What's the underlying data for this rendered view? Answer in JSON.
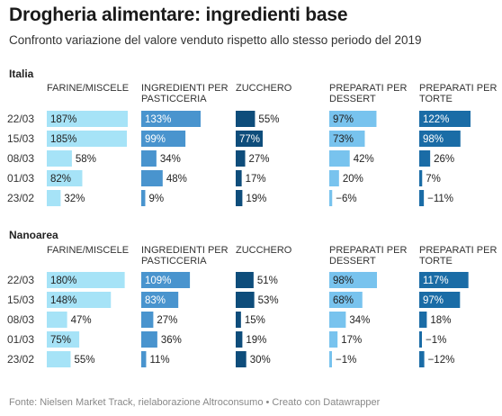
{
  "title": "Drogheria alimentare: ingredienti base",
  "subtitle": "Confronto variazione del valore venduto rispetto allo stesso periodo del 2019",
  "source": "Fonte: Nielsen Market Track, rielaborazione Altroconsumo • Creato con Datawrapper",
  "chart_data": {
    "type": "bar",
    "categories": [
      "22/03",
      "15/03",
      "08/03",
      "01/03",
      "23/02"
    ],
    "unit": "%",
    "columns": [
      {
        "name": "FARINE/MISCELE",
        "color": "#a6e3f7"
      },
      {
        "name": "INGREDIENTI PER PASTICCERIA",
        "color": "#4994ce"
      },
      {
        "name": "ZUCCHERO",
        "color": "#0e4d7b"
      },
      {
        "name": "PREPARATI PER DESSERT",
        "color": "#78c3ee"
      },
      {
        "name": "PREPARATI PER TORTE",
        "color": "#1a6ca6"
      }
    ],
    "panels": [
      {
        "name": "Italia",
        "series": [
          {
            "name": "FARINE/MISCELE",
            "values": [
              187,
              185,
              58,
              82,
              32
            ]
          },
          {
            "name": "INGREDIENTI PER PASTICCERIA",
            "values": [
              133,
              99,
              34,
              48,
              9
            ]
          },
          {
            "name": "ZUCCHERO",
            "values": [
              55,
              77,
              27,
              17,
              19
            ]
          },
          {
            "name": "PREPARATI PER DESSERT",
            "values": [
              97,
              73,
              42,
              20,
              -6
            ]
          },
          {
            "name": "PREPARATI PER TORTE",
            "values": [
              122,
              98,
              26,
              7,
              -11
            ]
          }
        ]
      },
      {
        "name": "Nanoarea",
        "series": [
          {
            "name": "FARINE/MISCELE",
            "values": [
              180,
              148,
              47,
              75,
              55
            ]
          },
          {
            "name": "INGREDIENTI PER PASTICCERIA",
            "values": [
              109,
              83,
              27,
              36,
              11
            ]
          },
          {
            "name": "ZUCCHERO",
            "values": [
              51,
              53,
              15,
              19,
              30
            ]
          },
          {
            "name": "PREPARATI PER DESSERT",
            "values": [
              98,
              68,
              34,
              17,
              -1
            ]
          },
          {
            "name": "PREPARATI PER TORTE",
            "values": [
              117,
              97,
              18,
              -1,
              -12
            ]
          }
        ]
      }
    ]
  }
}
